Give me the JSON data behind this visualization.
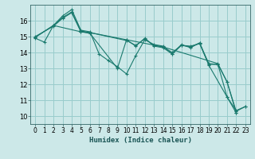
{
  "xlabel": "Humidex (Indice chaleur)",
  "bg_color": "#cce8e8",
  "grid_color": "#99cccc",
  "line_color": "#1a7a6e",
  "xlim": [
    -0.5,
    23.5
  ],
  "ylim": [
    9.5,
    17.0
  ],
  "yticks": [
    10,
    11,
    12,
    13,
    14,
    15,
    16
  ],
  "xticks": [
    0,
    1,
    2,
    3,
    4,
    5,
    6,
    7,
    8,
    9,
    10,
    11,
    12,
    13,
    14,
    15,
    16,
    17,
    18,
    19,
    20,
    21,
    22,
    23
  ],
  "lines": [
    {
      "x": [
        0,
        1,
        2,
        3,
        4,
        5,
        6,
        7,
        8,
        9,
        10,
        11,
        12,
        13,
        14,
        15,
        16,
        17,
        18,
        19,
        20,
        21,
        22,
        23
      ],
      "y": [
        14.9,
        14.65,
        15.7,
        16.3,
        16.7,
        15.4,
        15.3,
        13.9,
        13.5,
        13.1,
        12.65,
        13.8,
        14.8,
        14.5,
        14.4,
        13.9,
        14.45,
        14.4,
        14.55,
        13.25,
        13.25,
        12.15,
        10.3,
        10.6
      ]
    },
    {
      "x": [
        0,
        2,
        3,
        4,
        5,
        6,
        10,
        11,
        12,
        13,
        14,
        15,
        16,
        17,
        18,
        19,
        20,
        21,
        22
      ],
      "y": [
        14.95,
        15.7,
        16.2,
        16.55,
        15.35,
        15.25,
        14.75,
        14.45,
        14.85,
        14.45,
        14.35,
        14.0,
        14.45,
        14.35,
        14.6,
        13.3,
        13.25,
        11.2,
        10.2
      ]
    },
    {
      "x": [
        0,
        2,
        3,
        4,
        5,
        6,
        9,
        10,
        11,
        12,
        13,
        14,
        15,
        16,
        17,
        18,
        19,
        21,
        22,
        23
      ],
      "y": [
        15.0,
        15.65,
        16.15,
        16.5,
        15.3,
        15.2,
        13.0,
        14.8,
        14.4,
        14.9,
        14.4,
        14.3,
        13.9,
        14.5,
        14.3,
        14.6,
        13.2,
        11.2,
        10.35,
        10.6
      ]
    },
    {
      "x": [
        0,
        2,
        5,
        6,
        10,
        14,
        20,
        21,
        22
      ],
      "y": [
        14.95,
        15.7,
        15.3,
        15.25,
        14.8,
        14.35,
        13.3,
        12.15,
        10.2
      ]
    }
  ]
}
